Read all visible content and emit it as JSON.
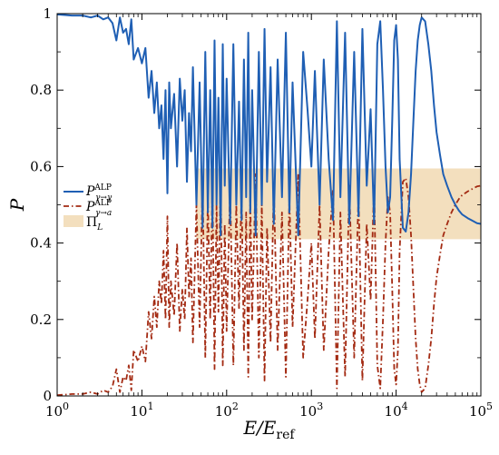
{
  "chart_data": {
    "type": "line",
    "xlabel": "E/E_ref",
    "ylabel": "P",
    "x_scale": "log",
    "xlim": [
      1,
      100000
    ],
    "ylim": [
      0,
      1
    ],
    "grid": false,
    "legend_placement": "middle-left",
    "x_ticks": [
      {
        "value": 1,
        "base": "10",
        "exp": "0"
      },
      {
        "value": 10,
        "base": "10",
        "exp": "1"
      },
      {
        "value": 100,
        "base": "10",
        "exp": "2"
      },
      {
        "value": 1000,
        "base": "10",
        "exp": "3"
      },
      {
        "value": 10000,
        "base": "10",
        "exp": "4"
      },
      {
        "value": 100000,
        "base": "10",
        "exp": "5"
      }
    ],
    "y_ticks": [
      "0",
      "0.2",
      "0.4",
      "0.6",
      "0.8",
      "1"
    ],
    "band": {
      "name": "Π_L",
      "x_range": [
        44,
        100000
      ],
      "y_range": [
        0.41,
        0.595
      ],
      "color": "#f3dfbe"
    },
    "series": [
      {
        "name": "P^ALP_{γ→γ}",
        "color": "#1f5fb4",
        "style": "solid",
        "x": [
          1,
          1.5,
          2,
          2.5,
          3,
          3.5,
          4,
          4.5,
          5,
          5.5,
          6,
          6.5,
          7,
          7.5,
          8,
          9,
          10,
          11,
          12,
          13,
          14,
          15,
          16,
          17,
          18,
          19,
          20,
          21,
          22,
          24,
          26,
          28,
          30,
          32,
          34,
          36,
          38,
          40,
          44,
          48,
          52,
          56,
          60,
          64,
          68,
          72,
          76,
          80,
          85,
          90,
          95,
          100,
          110,
          120,
          130,
          140,
          150,
          160,
          170,
          180,
          190,
          200,
          220,
          240,
          260,
          280,
          300,
          330,
          360,
          400,
          450,
          500,
          550,
          600,
          700,
          800,
          900,
          1000,
          1100,
          1250,
          1400,
          1600,
          1800,
          2000,
          2200,
          2500,
          2800,
          3200,
          3600,
          4000,
          4500,
          5000,
          5500,
          6000,
          6500,
          7000,
          7500,
          8000,
          8500,
          9000,
          9500,
          10000,
          10500,
          11000,
          12000,
          13000,
          14000,
          15000,
          16000,
          17000,
          18000,
          19000,
          20000,
          22000,
          24000,
          26000,
          28000,
          30000,
          33000,
          36000,
          40000,
          45000,
          50000,
          55000,
          60000,
          70000,
          80000,
          90000,
          100000
        ],
        "y": [
          0.998,
          0.995,
          0.995,
          0.99,
          0.995,
          0.985,
          0.99,
          0.975,
          0.93,
          0.99,
          0.95,
          0.96,
          0.92,
          0.985,
          0.88,
          0.91,
          0.87,
          0.91,
          0.78,
          0.85,
          0.74,
          0.82,
          0.7,
          0.76,
          0.62,
          0.8,
          0.53,
          0.82,
          0.7,
          0.79,
          0.6,
          0.83,
          0.72,
          0.8,
          0.56,
          0.74,
          0.64,
          0.86,
          0.5,
          0.82,
          0.44,
          0.9,
          0.48,
          0.8,
          0.44,
          0.93,
          0.5,
          0.78,
          0.42,
          0.92,
          0.55,
          0.83,
          0.45,
          0.92,
          0.5,
          0.77,
          0.46,
          0.88,
          0.52,
          0.95,
          0.48,
          0.8,
          0.42,
          0.9,
          0.5,
          0.96,
          0.56,
          0.86,
          0.45,
          0.88,
          0.52,
          0.95,
          0.48,
          0.82,
          0.42,
          0.9,
          0.75,
          0.6,
          0.85,
          0.5,
          0.88,
          0.62,
          0.46,
          0.98,
          0.52,
          0.95,
          0.45,
          0.9,
          0.47,
          0.96,
          0.55,
          0.75,
          0.45,
          0.92,
          0.98,
          0.8,
          0.6,
          0.48,
          0.52,
          0.72,
          0.93,
          0.97,
          0.88,
          0.62,
          0.44,
          0.43,
          0.48,
          0.58,
          0.72,
          0.85,
          0.93,
          0.97,
          0.99,
          0.98,
          0.92,
          0.85,
          0.76,
          0.69,
          0.63,
          0.58,
          0.55,
          0.52,
          0.5,
          0.485,
          0.475,
          0.465,
          0.458,
          0.452,
          0.45
        ]
      },
      {
        "name": "P^ALP_{γ→a}",
        "color": "#a32a12",
        "style": "dash-dot",
        "x": [
          1,
          1.5,
          2,
          2.5,
          3,
          3.5,
          4,
          4.5,
          5,
          5.5,
          6,
          6.5,
          7,
          7.5,
          8,
          9,
          10,
          11,
          12,
          13,
          14,
          15,
          16,
          17,
          18,
          19,
          20,
          21,
          22,
          24,
          26,
          28,
          30,
          32,
          34,
          36,
          38,
          40,
          44,
          48,
          52,
          56,
          60,
          64,
          68,
          72,
          76,
          80,
          85,
          90,
          95,
          100,
          110,
          120,
          130,
          140,
          150,
          160,
          170,
          180,
          190,
          200,
          220,
          240,
          260,
          280,
          300,
          330,
          360,
          400,
          450,
          500,
          550,
          600,
          700,
          800,
          900,
          1000,
          1100,
          1250,
          1400,
          1600,
          1800,
          2000,
          2200,
          2500,
          2800,
          3200,
          3600,
          4000,
          4500,
          5000,
          5500,
          6000,
          6500,
          7000,
          7500,
          8000,
          8500,
          9000,
          9500,
          10000,
          10500,
          11000,
          12000,
          13000,
          14000,
          15000,
          16000,
          17000,
          18000,
          19000,
          20000,
          22000,
          24000,
          26000,
          28000,
          30000,
          33000,
          36000,
          40000,
          45000,
          50000,
          55000,
          60000,
          70000,
          80000,
          90000,
          100000
        ],
        "y": [
          0.002,
          0.005,
          0.005,
          0.01,
          0.005,
          0.015,
          0.01,
          0.025,
          0.07,
          0.01,
          0.05,
          0.04,
          0.08,
          0.015,
          0.12,
          0.09,
          0.13,
          0.09,
          0.22,
          0.15,
          0.26,
          0.18,
          0.3,
          0.24,
          0.38,
          0.2,
          0.47,
          0.18,
          0.3,
          0.21,
          0.4,
          0.17,
          0.28,
          0.2,
          0.44,
          0.26,
          0.36,
          0.14,
          0.5,
          0.18,
          0.56,
          0.1,
          0.52,
          0.2,
          0.56,
          0.07,
          0.5,
          0.22,
          0.58,
          0.08,
          0.45,
          0.17,
          0.55,
          0.08,
          0.5,
          0.23,
          0.54,
          0.12,
          0.48,
          0.05,
          0.52,
          0.2,
          0.58,
          0.1,
          0.5,
          0.04,
          0.44,
          0.14,
          0.55,
          0.12,
          0.48,
          0.05,
          0.52,
          0.18,
          0.58,
          0.1,
          0.25,
          0.4,
          0.15,
          0.5,
          0.12,
          0.38,
          0.54,
          0.02,
          0.48,
          0.05,
          0.55,
          0.1,
          0.53,
          0.04,
          0.45,
          0.25,
          0.55,
          0.08,
          0.02,
          0.2,
          0.4,
          0.52,
          0.48,
          0.28,
          0.07,
          0.03,
          0.12,
          0.38,
          0.56,
          0.57,
          0.52,
          0.42,
          0.28,
          0.15,
          0.07,
          0.03,
          0.01,
          0.02,
          0.08,
          0.15,
          0.24,
          0.31,
          0.37,
          0.42,
          0.45,
          0.48,
          0.5,
          0.515,
          0.525,
          0.535,
          0.542,
          0.548,
          0.55
        ]
      }
    ]
  }
}
